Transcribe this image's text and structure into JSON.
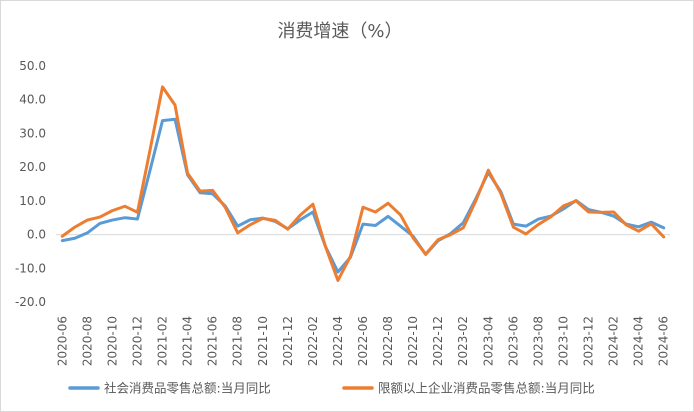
{
  "chart_data": {
    "type": "line",
    "title": "消费增速（%）",
    "xlabel": "",
    "ylabel": "",
    "ylim": [
      -20,
      50
    ],
    "yticks": [
      "50.0",
      "40.0",
      "30.0",
      "20.0",
      "10.0",
      "0.0",
      "-10.0",
      "-20.0"
    ],
    "grid": false,
    "legend_position": "bottom",
    "x": [
      "2020-06",
      "2020-07",
      "2020-08",
      "2020-09",
      "2020-10",
      "2020-11",
      "2020-12",
      "2021-01",
      "2021-02",
      "2021-03",
      "2021-04",
      "2021-05",
      "2021-06",
      "2021-07",
      "2021-08",
      "2021-09",
      "2021-10",
      "2021-11",
      "2021-12",
      "2022-01",
      "2022-02",
      "2022-03",
      "2022-04",
      "2022-05",
      "2022-06",
      "2022-07",
      "2022-08",
      "2022-09",
      "2022-10",
      "2022-11",
      "2022-12",
      "2023-01",
      "2023-02",
      "2023-03",
      "2023-04",
      "2023-05",
      "2023-06",
      "2023-07",
      "2023-08",
      "2023-09",
      "2023-10",
      "2023-11",
      "2023-12",
      "2024-01",
      "2024-02",
      "2024-03",
      "2024-04",
      "2024-05",
      "2024-06"
    ],
    "xtick_labels": [
      "2020-06",
      "2020-08",
      "2020-10",
      "2020-12",
      "2021-02",
      "2021-04",
      "2021-06",
      "2021-08",
      "2021-10",
      "2021-12",
      "2022-02",
      "2022-04",
      "2022-06",
      "2022-08",
      "2022-10",
      "2022-12",
      "2023-02",
      "2023-04",
      "2023-06",
      "2023-08",
      "2023-10",
      "2023-12",
      "2024-02",
      "2024-04",
      "2024-06"
    ],
    "series": [
      {
        "name": "社会消费品零售总额:当月同比",
        "color": "#5b9bd5",
        "values": [
          -1.8,
          -1.1,
          0.5,
          3.3,
          4.3,
          5.0,
          4.6,
          19.0,
          33.8,
          34.2,
          17.7,
          12.4,
          12.1,
          8.5,
          2.5,
          4.4,
          4.9,
          3.9,
          1.7,
          4.4,
          6.7,
          -3.5,
          -11.1,
          -6.7,
          3.1,
          2.7,
          5.4,
          2.5,
          -0.5,
          -5.9,
          -1.8,
          0.3,
          3.5,
          10.6,
          18.4,
          12.7,
          3.1,
          2.5,
          4.6,
          5.5,
          7.6,
          10.1,
          7.4,
          6.6,
          5.5,
          3.1,
          2.3,
          3.7,
          2.0
        ]
      },
      {
        "name": "限额以上企业消费品零售总额:当月同比",
        "color": "#ed7d31",
        "values": [
          -0.5,
          2.2,
          4.3,
          5.2,
          7.1,
          8.4,
          6.6,
          25.0,
          43.8,
          38.4,
          18.2,
          12.9,
          13.1,
          8.1,
          0.5,
          2.9,
          4.8,
          4.2,
          1.6,
          5.8,
          9.0,
          -3.5,
          -13.6,
          -6.4,
          8.1,
          6.7,
          9.3,
          5.8,
          -1.0,
          -5.8,
          -1.5,
          0.0,
          2.0,
          10.0,
          19.1,
          12.2,
          2.2,
          0.2,
          3.0,
          5.3,
          8.5,
          10.0,
          6.7,
          6.6,
          6.7,
          2.9,
          1.0,
          3.2,
          -0.7
        ]
      }
    ]
  }
}
